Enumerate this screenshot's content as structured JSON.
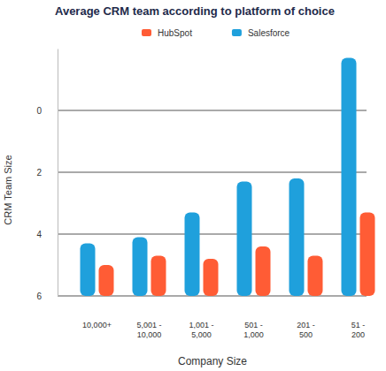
{
  "chart_data": {
    "type": "bar",
    "title": "Average CRM team according to platform of choice",
    "x_label": "Company Size",
    "y_label": "CRM Team Size",
    "categories": [
      "10,000+",
      "5,001 - 10,000",
      "1,001 - 5,000",
      "501 - 1,000",
      "201 - 500",
      "51 - 200"
    ],
    "series": [
      {
        "name": "HubSpot",
        "color": "#ff5c35",
        "values": [
          5.0,
          4.7,
          4.8,
          4.4,
          4.7,
          3.3
        ]
      },
      {
        "name": "Salesforce",
        "color": "#1fa0dc",
        "values": [
          4.3,
          4.1,
          3.3,
          2.3,
          2.2,
          -1.7
        ]
      }
    ],
    "ylim": [
      6,
      -2
    ],
    "yticks": [
      0,
      2,
      4,
      6
    ],
    "grid": true,
    "legend": "top"
  }
}
